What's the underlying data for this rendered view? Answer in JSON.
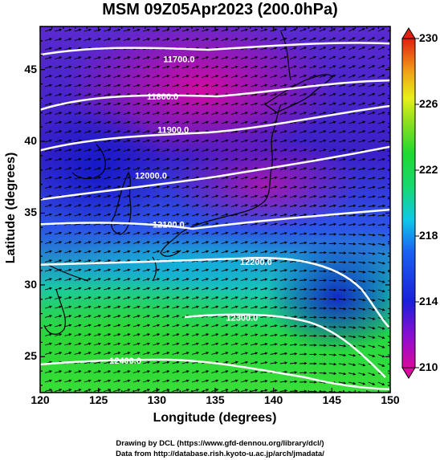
{
  "title": "MSM 09Z05Apr2023 (200.0hPa)",
  "x_axis": {
    "label": "Longitude (degrees)",
    "ticks": [
      "120",
      "125",
      "130",
      "135",
      "140",
      "145",
      "150"
    ]
  },
  "y_axis": {
    "label": "Latitude  (degrees)",
    "ticks": [
      "25",
      "30",
      "35",
      "40",
      "45"
    ]
  },
  "colorbar": {
    "ticks": [
      "210",
      "214",
      "218",
      "222",
      "226",
      "230"
    ],
    "min": 210,
    "max": 230
  },
  "contours": [
    "11700.0",
    "11800.0",
    "11900.0",
    "12000.0",
    "12100.0",
    "12200.0",
    "12300.0",
    "12400.0"
  ],
  "footer": {
    "line1": "Drawing by DCL (https://www.gfd-dennou.org/library/dcl/)",
    "line2": "Data from http://database.rish.kyoto-u.ac.jp/arch/jmadata/"
  },
  "chart_data": {
    "type": "heatmap",
    "title": "MSM 09Z05Apr2023 (200.0hPa)",
    "xlabel": "Longitude (degrees)",
    "ylabel": "Latitude  (degrees)",
    "xlim": [
      120,
      150
    ],
    "ylim": [
      22.5,
      48
    ],
    "color_scale": {
      "min": 210,
      "max": 230,
      "ticks": [
        210,
        214,
        218,
        222,
        226,
        230
      ]
    },
    "contour_levels": [
      11700,
      11800,
      11900,
      12000,
      12100,
      12200,
      12300,
      12400
    ],
    "contour_label_positions": [
      {
        "level": "11700.0",
        "lon": 131.9,
        "lat": 45.5
      },
      {
        "level": "11800.0",
        "lon": 130.5,
        "lat": 42.9
      },
      {
        "level": "11900.0",
        "lon": 131.4,
        "lat": 40.6
      },
      {
        "level": "12000.0",
        "lon": 129.5,
        "lat": 37.4
      },
      {
        "level": "12100.0",
        "lon": 131.0,
        "lat": 34.0
      },
      {
        "level": "12200.0",
        "lon": 138.5,
        "lat": 31.4
      },
      {
        "level": "12300.0",
        "lon": 137.3,
        "lat": 27.5
      },
      {
        "level": "12400.0",
        "lon": 127.3,
        "lat": 24.5
      }
    ],
    "colors": {
      "cold": "#d80aa0",
      "cool": "#1e2ad8",
      "mid": "#12c8d8",
      "warm": "#1ed83a",
      "hot": "#e8f018",
      "top": "#e02010"
    }
  }
}
